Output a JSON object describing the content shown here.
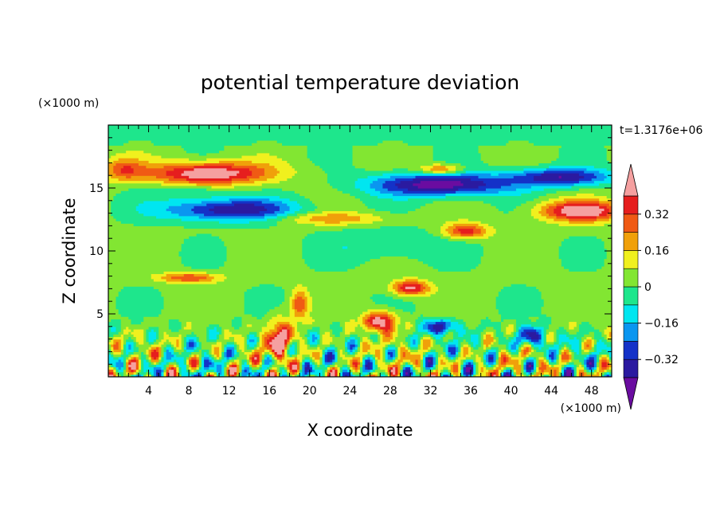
{
  "chart_data": {
    "type": "heatmap",
    "title": "potential temperature deviation",
    "xlabel": "X coordinate",
    "ylabel": "Z coordinate",
    "x_unit": "(×1000 m)",
    "y_unit": "(×1000 m)",
    "time_label": "t=1.3176e+06",
    "xlim": [
      0,
      50
    ],
    "ylim": [
      0,
      20
    ],
    "x_ticks": [
      4,
      8,
      12,
      16,
      20,
      24,
      28,
      32,
      36,
      40,
      44,
      48
    ],
    "y_ticks": [
      5,
      10,
      15
    ],
    "colorbar": {
      "levels": [
        -0.4,
        -0.32,
        -0.24,
        -0.16,
        -0.08,
        0,
        0.08,
        0.16,
        0.24,
        0.32,
        0.4
      ],
      "tick_labels": [
        "0.32",
        "0.16",
        "0",
        "−0.16",
        "−0.32"
      ],
      "tick_values": [
        0.32,
        0.16,
        0,
        -0.16,
        -0.32
      ],
      "colors": [
        "#6a0ca0",
        "#2b1aa0",
        "#1432c8",
        "#0a96f0",
        "#00e6f0",
        "#1ee68c",
        "#82e632",
        "#f0f01e",
        "#f0a00a",
        "#f05a14",
        "#e61e1e",
        "#f5a0a0"
      ],
      "extend": "both"
    },
    "features": [
      {
        "x": 10,
        "z": 16.2,
        "value": 0.45
      },
      {
        "x": 12,
        "z": 13.3,
        "value": -0.36
      },
      {
        "x": 33,
        "z": 15.2,
        "value": -0.44
      },
      {
        "x": 45,
        "z": 15.9,
        "value": -0.36
      },
      {
        "x": 47,
        "z": 13.2,
        "value": 0.45
      },
      {
        "x": 35.5,
        "z": 11.6,
        "value": 0.33
      },
      {
        "x": 33,
        "z": 16.5,
        "value": 0.3
      },
      {
        "x": 8,
        "z": 7.9,
        "value": 0.28
      },
      {
        "x": 30,
        "z": 7.1,
        "value": 0.42
      },
      {
        "x": 27,
        "z": 4.4,
        "value": 0.45
      },
      {
        "x": 17,
        "z": 3.0,
        "value": 0.42
      },
      {
        "x": 42,
        "z": 3.2,
        "value": -0.36
      },
      {
        "x": 33,
        "z": 4.0,
        "value": -0.36
      }
    ]
  }
}
